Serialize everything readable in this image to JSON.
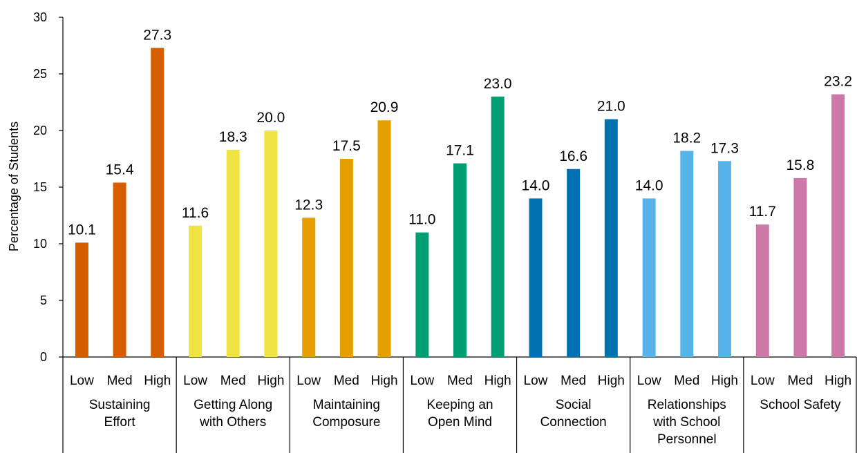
{
  "chart_data": {
    "type": "bar",
    "ylabel": "Percentage of Students",
    "xlabel": "",
    "ylim": [
      0,
      30
    ],
    "yticks": [
      0,
      5,
      10,
      15,
      20,
      25,
      30
    ],
    "grid": false,
    "legend": "none",
    "sublevels": [
      "Low",
      "Med",
      "High"
    ],
    "groups": [
      {
        "label_lines": [
          "Sustaining",
          "Effort"
        ],
        "color": "#D55E00",
        "values": [
          10.1,
          15.4,
          27.3
        ],
        "value_labels": [
          "10.1",
          "15.4",
          "27.3"
        ]
      },
      {
        "label_lines": [
          "Getting Along",
          "with Others"
        ],
        "color": "#F0E442",
        "values": [
          11.6,
          18.3,
          20.0
        ],
        "value_labels": [
          "11.6",
          "18.3",
          "20.0"
        ]
      },
      {
        "label_lines": [
          "Maintaining",
          "Composure"
        ],
        "color": "#E69F00",
        "values": [
          12.3,
          17.5,
          20.9
        ],
        "value_labels": [
          "12.3",
          "17.5",
          "20.9"
        ]
      },
      {
        "label_lines": [
          "Keeping an",
          "Open Mind"
        ],
        "color": "#009E73",
        "values": [
          11.0,
          17.1,
          23.0
        ],
        "value_labels": [
          "11.0",
          "17.1",
          "23.0"
        ]
      },
      {
        "label_lines": [
          "Social",
          "Connection"
        ],
        "color": "#0072B2",
        "values": [
          14.0,
          16.6,
          21.0
        ],
        "value_labels": [
          "14.0",
          "16.6",
          "21.0"
        ]
      },
      {
        "label_lines": [
          "Relationships",
          "with School",
          "Personnel"
        ],
        "color": "#56B4E9",
        "values": [
          14.0,
          18.2,
          17.3
        ],
        "value_labels": [
          "14.0",
          "18.2",
          "17.3"
        ]
      },
      {
        "label_lines": [
          "School Safety"
        ],
        "color": "#CC79A7",
        "values": [
          11.7,
          15.8,
          23.2
        ],
        "value_labels": [
          "11.7",
          "15.8",
          "23.2"
        ]
      }
    ]
  }
}
